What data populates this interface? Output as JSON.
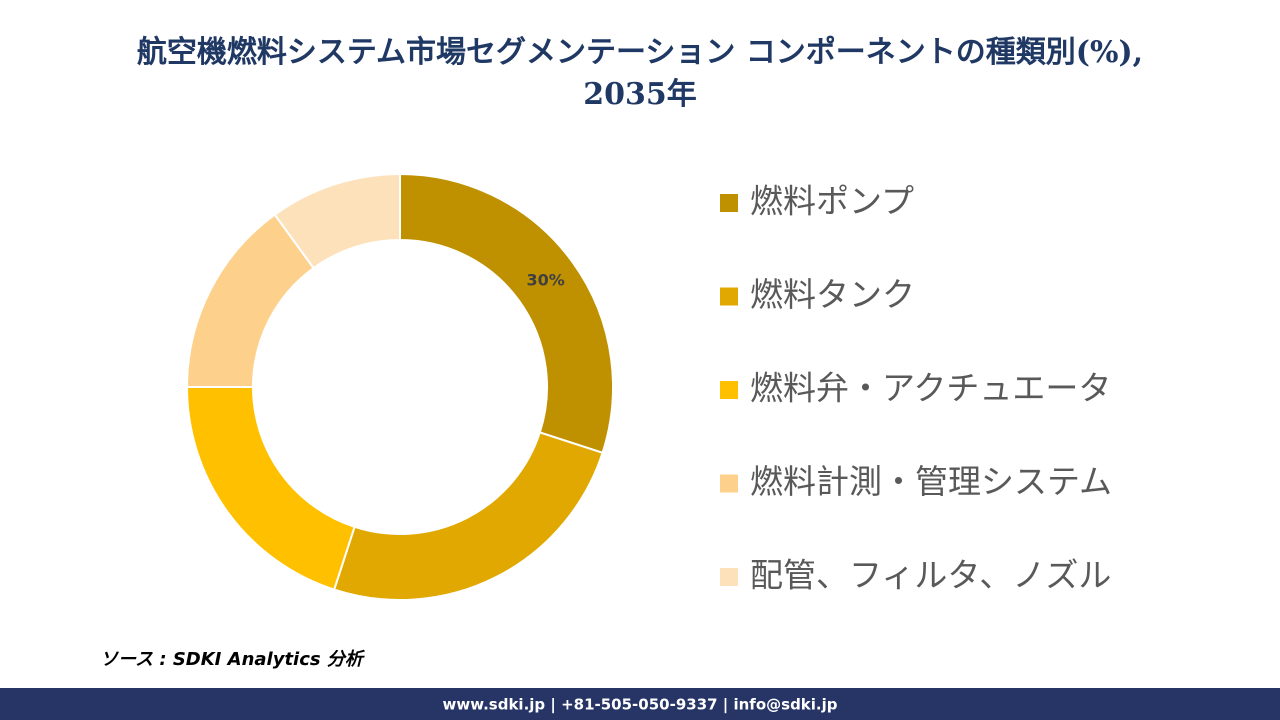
{
  "chart_data": {
    "type": "donut",
    "title": [
      "航空機燃料システム市場セグメンテーション コンポーネントの種類別(%),",
      "2035年"
    ],
    "categories": [
      "燃料ポンプ",
      "燃料タンク",
      "燃料弁・アクチュエータ",
      "燃料計測・管理システム",
      "配管、フィルタ、ノズル"
    ],
    "values": [
      30,
      25,
      20,
      15,
      10
    ],
    "value_labels": [
      "30%",
      null,
      null,
      null,
      null
    ],
    "colors": [
      "#BF9000",
      "#E0A800",
      "#FFC000",
      "#FDD08C",
      "#FDE1BA"
    ],
    "legend": "right"
  },
  "source": "ソース : SDKI Analytics 分析",
  "footer": "www.sdki.jp | +81-505-050-9337 | info@sdki.jp"
}
